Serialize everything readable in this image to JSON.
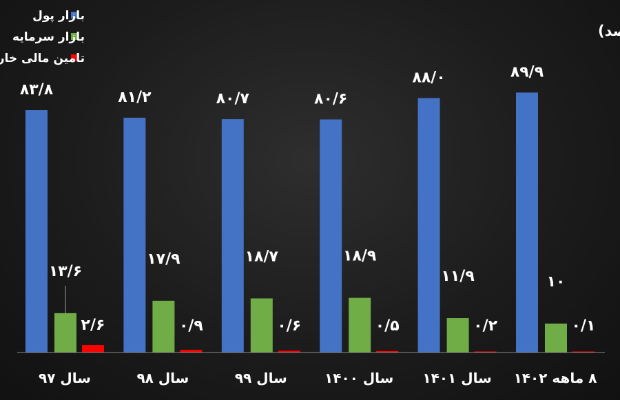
{
  "chart_data": {
    "type": "bar",
    "title": "سهم هر یک از بازارها از تامین مالی کشور (درصد)",
    "categories": [
      "سال ۹۷",
      "سال ۹۸",
      "سال ۹۹",
      "سال ۱۴۰۰",
      "سال ۱۴۰۱",
      "۸ ماهه ۱۴۰۲"
    ],
    "series": [
      {
        "name": "بازار پول",
        "color": "#4472c4",
        "values": [
          83.8,
          81.2,
          80.7,
          80.6,
          88.0,
          89.9
        ],
        "labels": [
          "۸۳/۸",
          "۸۱/۲",
          "۸۰/۷",
          "۸۰/۶",
          "۸۸/۰",
          "۸۹/۹"
        ]
      },
      {
        "name": "بازار سرمایه",
        "color": "#70ad47",
        "values": [
          13.6,
          17.9,
          18.7,
          18.9,
          11.9,
          10
        ],
        "labels": [
          "۱۳/۶",
          "۱۷/۹",
          "۱۸/۷",
          "۱۸/۹",
          "۱۱/۹",
          "۱۰"
        ]
      },
      {
        "name": "تامین مالی خارجی",
        "color": "#ff0000",
        "values": [
          2.6,
          0.9,
          0.6,
          0.5,
          0.2,
          0.1
        ],
        "labels": [
          "۲/۶",
          "۰/۹",
          "۰/۶",
          "۰/۵",
          "۰/۲",
          "۰/۱"
        ]
      }
    ],
    "ylim": [
      0,
      100
    ],
    "grid": false,
    "legend_position": "top-left"
  }
}
